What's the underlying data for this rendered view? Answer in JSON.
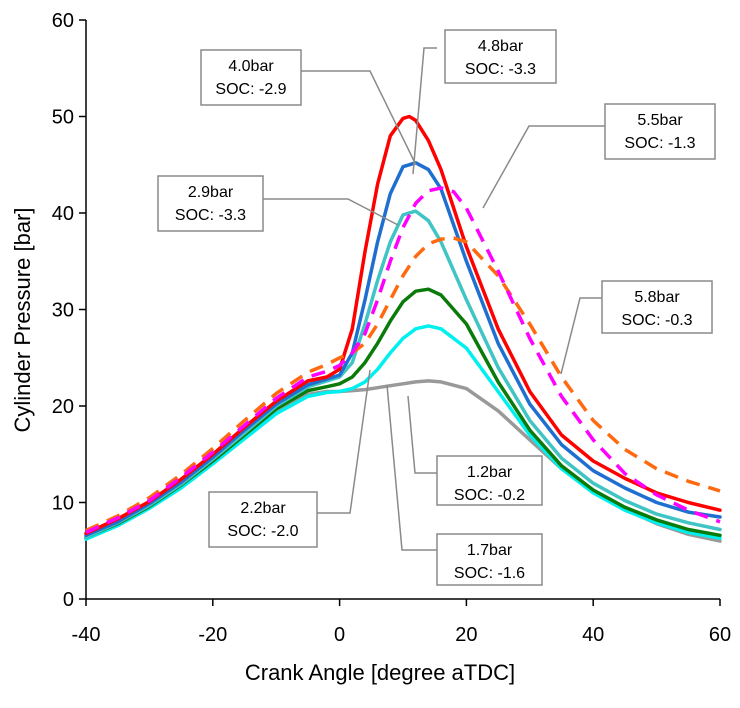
{
  "chart_data": {
    "type": "line",
    "title": "",
    "xlabel": "Crank Angle [degree aTDC]",
    "ylabel": "Cylinder Pressure [bar]",
    "xlim": [
      -40,
      60
    ],
    "ylim": [
      0,
      60
    ],
    "xticks": [
      -40,
      -20,
      0,
      20,
      40,
      60
    ],
    "yticks": [
      0,
      10,
      20,
      30,
      40,
      50,
      60
    ],
    "grid": false,
    "legend": "none",
    "series": [
      {
        "label_lines": [
          "4.0bar",
          "SOC: -2.9"
        ],
        "color": "#ff0000",
        "dash": "solid",
        "x": [
          -40,
          -35,
          -30,
          -25,
          -20,
          -15,
          -10,
          -5,
          -2,
          0,
          2,
          4,
          6,
          8,
          10,
          11,
          12,
          14,
          16,
          20,
          25,
          30,
          35,
          40,
          45,
          50,
          55,
          60
        ],
        "y": [
          6.8,
          8.3,
          10.1,
          12.4,
          15.0,
          17.8,
          20.5,
          22.6,
          23.0,
          23.8,
          28.0,
          36.0,
          43.0,
          48.0,
          49.8,
          50.0,
          49.6,
          47.5,
          44.5,
          36.5,
          28.0,
          21.5,
          17.0,
          14.3,
          12.5,
          11.0,
          10.0,
          9.2
        ]
      },
      {
        "label_lines": [
          "4.8bar",
          "SOC: -3.3"
        ],
        "color": "#1f6fd0",
        "dash": "solid",
        "x": [
          -40,
          -35,
          -30,
          -25,
          -20,
          -15,
          -10,
          -5,
          -2,
          0,
          2,
          4,
          6,
          8,
          10,
          12,
          14,
          16,
          20,
          25,
          30,
          35,
          40,
          45,
          50,
          55,
          60
        ],
        "y": [
          6.6,
          8.0,
          9.9,
          12.1,
          14.7,
          17.5,
          20.2,
          22.2,
          22.8,
          23.2,
          25.5,
          31.0,
          37.0,
          42.0,
          44.8,
          45.2,
          44.5,
          42.5,
          35.0,
          26.5,
          20.2,
          16.0,
          13.3,
          11.5,
          10.0,
          9.0,
          8.5
        ]
      },
      {
        "label_lines": [
          "2.9bar",
          "SOC: -3.3"
        ],
        "color": "#40c4c4",
        "dash": "solid",
        "x": [
          -40,
          -35,
          -30,
          -25,
          -20,
          -15,
          -10,
          -5,
          -2,
          0,
          2,
          4,
          6,
          8,
          10,
          12,
          14,
          16,
          20,
          25,
          30,
          35,
          40,
          45,
          50,
          55,
          60
        ],
        "y": [
          6.4,
          7.9,
          9.7,
          11.9,
          14.5,
          17.2,
          20.0,
          22.0,
          22.6,
          23.0,
          24.5,
          28.5,
          33.0,
          37.0,
          39.8,
          40.2,
          39.2,
          37.0,
          31.0,
          24.0,
          18.5,
          14.6,
          12.0,
          10.2,
          8.8,
          7.9,
          7.2
        ]
      },
      {
        "label_lines": [
          "5.5bar",
          "SOC: -1.3"
        ],
        "color": "#ff00ff",
        "dash": "dashed",
        "x": [
          -40,
          -35,
          -30,
          -25,
          -20,
          -15,
          -10,
          -5,
          -2,
          0,
          2,
          4,
          6,
          8,
          10,
          12,
          14,
          16,
          18,
          20,
          25,
          30,
          35,
          40,
          45,
          50,
          55,
          60
        ],
        "y": [
          6.9,
          8.4,
          10.2,
          12.6,
          15.2,
          18.0,
          20.8,
          23.0,
          23.6,
          24.2,
          25.5,
          27.5,
          31.0,
          35.0,
          38.5,
          41.0,
          42.3,
          42.6,
          42.2,
          40.5,
          34.0,
          27.0,
          21.0,
          16.5,
          13.0,
          10.8,
          9.2,
          8.0
        ]
      },
      {
        "label_lines": [
          "5.8bar",
          "SOC: -0.3"
        ],
        "color": "#ff6a10",
        "dash": "dashed",
        "x": [
          -40,
          -35,
          -30,
          -25,
          -20,
          -15,
          -10,
          -5,
          -2,
          0,
          2,
          4,
          6,
          8,
          10,
          12,
          14,
          16,
          18,
          20,
          25,
          30,
          35,
          40,
          45,
          50,
          55,
          60
        ],
        "y": [
          7.1,
          8.6,
          10.5,
          12.9,
          15.6,
          18.5,
          21.3,
          23.5,
          24.3,
          25.0,
          25.5,
          26.5,
          28.5,
          31.0,
          33.5,
          35.5,
          36.8,
          37.3,
          37.4,
          37.0,
          33.5,
          28.5,
          23.0,
          18.5,
          15.5,
          13.5,
          12.2,
          11.2
        ]
      },
      {
        "label_lines": [
          "2.2bar",
          "SOC: -2.0"
        ],
        "color": "#0a7a0a",
        "dash": "solid",
        "x": [
          -40,
          -35,
          -30,
          -25,
          -20,
          -15,
          -10,
          -5,
          -2,
          0,
          2,
          4,
          6,
          8,
          10,
          12,
          14,
          16,
          20,
          25,
          30,
          35,
          40,
          45,
          50,
          55,
          60
        ],
        "y": [
          6.4,
          7.8,
          9.6,
          11.8,
          14.3,
          17.0,
          19.7,
          21.6,
          22.0,
          22.3,
          23.0,
          24.5,
          26.5,
          28.8,
          30.8,
          31.9,
          32.1,
          31.5,
          28.5,
          22.5,
          17.5,
          13.8,
          11.3,
          9.5,
          8.2,
          7.2,
          6.6
        ]
      },
      {
        "label_lines": [
          "1.7bar",
          "SOC: -1.6"
        ],
        "color": "#00f0f0",
        "dash": "solid",
        "x": [
          -40,
          -35,
          -30,
          -25,
          -20,
          -15,
          -10,
          -5,
          -2,
          0,
          2,
          4,
          6,
          8,
          10,
          12,
          14,
          16,
          20,
          25,
          30,
          35,
          40,
          45,
          50,
          55,
          60
        ],
        "y": [
          6.2,
          7.6,
          9.4,
          11.5,
          14.0,
          16.6,
          19.2,
          21.0,
          21.4,
          21.5,
          21.8,
          22.5,
          23.8,
          25.5,
          27.0,
          28.0,
          28.3,
          28.0,
          26.0,
          21.5,
          17.0,
          13.5,
          11.0,
          9.2,
          7.9,
          6.9,
          6.3
        ]
      },
      {
        "label_lines": [
          "1.2bar",
          "SOC: -0.2"
        ],
        "color": "#999999",
        "dash": "solid",
        "x": [
          -40,
          -35,
          -30,
          -25,
          -20,
          -15,
          -10,
          -5,
          -2,
          0,
          2,
          4,
          6,
          8,
          10,
          12,
          14,
          16,
          20,
          25,
          30,
          35,
          40,
          45,
          50,
          55,
          60
        ],
        "y": [
          6.3,
          7.7,
          9.5,
          11.7,
          14.2,
          16.9,
          19.5,
          21.2,
          21.5,
          21.5,
          21.6,
          21.7,
          21.9,
          22.1,
          22.3,
          22.5,
          22.6,
          22.5,
          21.8,
          19.5,
          16.5,
          13.5,
          11.2,
          9.3,
          7.8,
          6.7,
          6.0
        ]
      }
    ]
  }
}
